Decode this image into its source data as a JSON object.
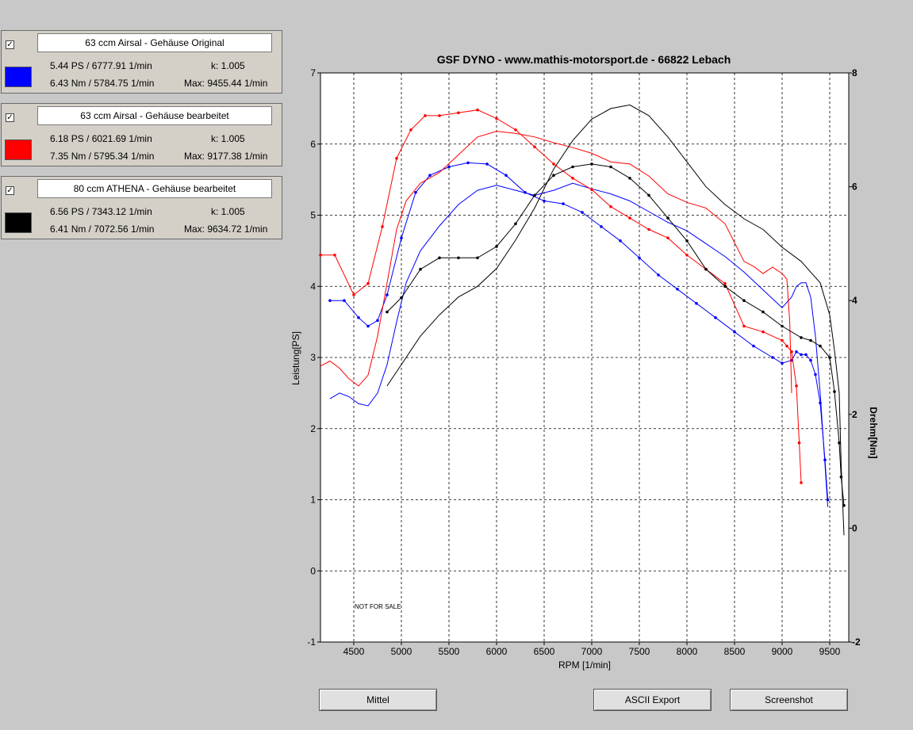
{
  "panels": [
    {
      "name": "63 ccm Airsal - Gehäuse Original",
      "checked": "✓",
      "ps": "5.44 PS / 6777.91 1/min",
      "k": "k: 1.005",
      "nm": "6.43 Nm / 5784.75 1/min",
      "max": "Max: 9455.44 1/min",
      "color": "#0000ff"
    },
    {
      "name": "63 ccm Airsal - Gehäuse bearbeitet",
      "checked": "✓",
      "ps": "6.18 PS / 6021.69 1/min",
      "k": "k: 1.005",
      "nm": "7.35 Nm / 5795.34 1/min",
      "max": "Max: 9177.38 1/min",
      "color": "#ff0000"
    },
    {
      "name": "80 ccm ATHENA - Gehäuse bearbeitet",
      "checked": "✓",
      "ps": "6.56 PS / 7343.12 1/min",
      "k": "k: 1.005",
      "nm": "6.41 Nm / 7072.56 1/min",
      "max": "Max: 9634.72 1/min",
      "color": "#000000"
    }
  ],
  "buttons": {
    "mittel": "Mittel",
    "ascii": "ASCII Export",
    "screenshot": "Screenshot"
  },
  "chart_data": {
    "type": "line",
    "title": "GSF DYNO - www.mathis-motorsport.de - 66822 Lebach",
    "xlabel": "RPM [1/min]",
    "ylabel": "Leistung[PS]",
    "y2label": "Drehm[Nm]",
    "watermark": "NOT FOR SALE",
    "xlim": [
      4150,
      9700
    ],
    "ylim": [
      -1,
      7
    ],
    "y2lim": [
      -2,
      8
    ],
    "xticks": [
      4500,
      5000,
      5500,
      6000,
      6500,
      7000,
      7500,
      8000,
      8500,
      9000,
      9500
    ],
    "yticks": [
      -1,
      0,
      1,
      2,
      3,
      4,
      5,
      6,
      7
    ],
    "y2ticks": [
      -2,
      0,
      2,
      4,
      6,
      8
    ],
    "grid": true,
    "series": [
      {
        "color": "#0000ff",
        "axis": "power",
        "x": [
          4250,
          4350,
          4450,
          4550,
          4650,
          4750,
          4850,
          4950,
          5050,
          5200,
          5400,
          5600,
          5800,
          6000,
          6200,
          6400,
          6600,
          6800,
          7000,
          7200,
          7400,
          7600,
          7800,
          8000,
          8200,
          8400,
          8600,
          8800,
          9000,
          9100,
          9150,
          9200,
          9250,
          9300,
          9350,
          9400,
          9450,
          9480
        ],
        "y": [
          2.42,
          2.5,
          2.45,
          2.35,
          2.32,
          2.5,
          2.9,
          3.5,
          4.05,
          4.5,
          4.85,
          5.15,
          5.35,
          5.42,
          5.35,
          5.28,
          5.35,
          5.45,
          5.37,
          5.3,
          5.2,
          5.05,
          4.9,
          4.78,
          4.6,
          4.42,
          4.2,
          3.95,
          3.7,
          3.85,
          4.0,
          4.05,
          4.05,
          3.85,
          3.3,
          2.5,
          1.5,
          0.9
        ]
      },
      {
        "color": "#0000ff",
        "axis": "torque",
        "x": [
          4250,
          4400,
          4550,
          4650,
          4750,
          4850,
          5000,
          5150,
          5300,
          5500,
          5700,
          5900,
          6100,
          6300,
          6500,
          6700,
          6900,
          7100,
          7300,
          7500,
          7700,
          7900,
          8100,
          8300,
          8500,
          8700,
          8900,
          9000,
          9100,
          9150,
          9200,
          9250,
          9300,
          9350,
          9400,
          9450,
          9480
        ],
        "y": [
          4.0,
          4.0,
          3.7,
          3.55,
          3.65,
          4.1,
          5.1,
          5.9,
          6.2,
          6.35,
          6.42,
          6.4,
          6.2,
          5.9,
          5.75,
          5.7,
          5.55,
          5.3,
          5.05,
          4.75,
          4.45,
          4.2,
          3.95,
          3.7,
          3.45,
          3.2,
          3.0,
          2.9,
          2.95,
          3.1,
          3.05,
          3.05,
          2.95,
          2.7,
          2.2,
          1.2,
          0.5
        ]
      },
      {
        "color": "#ff0000",
        "axis": "power",
        "x": [
          4150,
          4250,
          4350,
          4450,
          4550,
          4650,
          4750,
          4850,
          4950,
          5050,
          5200,
          5400,
          5600,
          5800,
          6000,
          6200,
          6400,
          6600,
          6800,
          7000,
          7200,
          7400,
          7600,
          7800,
          8000,
          8200,
          8400,
          8600,
          8700,
          8800,
          8900,
          9000,
          9050,
          9080,
          9100
        ],
        "y": [
          2.88,
          2.95,
          2.85,
          2.7,
          2.6,
          2.75,
          3.3,
          4.05,
          4.8,
          5.2,
          5.45,
          5.6,
          5.85,
          6.1,
          6.18,
          6.15,
          6.1,
          6.02,
          5.95,
          5.87,
          5.75,
          5.72,
          5.55,
          5.3,
          5.18,
          5.1,
          4.88,
          4.35,
          4.28,
          4.18,
          4.27,
          4.18,
          4.1,
          3.5,
          2.5
        ]
      },
      {
        "color": "#ff0000",
        "axis": "torque",
        "x": [
          4150,
          4300,
          4500,
          4650,
          4800,
          4950,
          5100,
          5250,
          5400,
          5600,
          5800,
          6000,
          6200,
          6400,
          6600,
          6800,
          7000,
          7200,
          7400,
          7600,
          7800,
          8000,
          8200,
          8400,
          8600,
          8800,
          9000,
          9050,
          9100,
          9150,
          9180,
          9200
        ],
        "y": [
          4.8,
          4.8,
          4.1,
          4.3,
          5.3,
          6.5,
          7.0,
          7.25,
          7.25,
          7.3,
          7.35,
          7.2,
          7.0,
          6.7,
          6.4,
          6.15,
          5.95,
          5.65,
          5.45,
          5.25,
          5.1,
          4.8,
          4.55,
          4.3,
          3.55,
          3.45,
          3.3,
          3.2,
          3.1,
          2.5,
          1.5,
          0.8
        ]
      },
      {
        "color": "#000000",
        "axis": "power",
        "x": [
          4850,
          5000,
          5200,
          5400,
          5600,
          5800,
          6000,
          6200,
          6400,
          6600,
          6800,
          7000,
          7200,
          7400,
          7600,
          7800,
          8000,
          8200,
          8400,
          8600,
          8800,
          9000,
          9200,
          9300,
          9400,
          9500,
          9550,
          9600,
          9620,
          9650
        ],
        "y": [
          2.6,
          2.9,
          3.3,
          3.6,
          3.85,
          4.0,
          4.25,
          4.65,
          5.1,
          5.65,
          6.05,
          6.35,
          6.5,
          6.55,
          6.4,
          6.1,
          5.75,
          5.4,
          5.15,
          4.95,
          4.8,
          4.55,
          4.35,
          4.2,
          4.05,
          3.6,
          3.1,
          2.5,
          1.5,
          0.5
        ]
      },
      {
        "color": "#000000",
        "axis": "torque",
        "x": [
          4850,
          5000,
          5200,
          5400,
          5600,
          5800,
          6000,
          6200,
          6400,
          6600,
          6800,
          7000,
          7200,
          7400,
          7600,
          7800,
          8000,
          8200,
          8400,
          8600,
          8800,
          9000,
          9200,
          9300,
          9400,
          9500,
          9550,
          9600,
          9620,
          9650
        ],
        "y": [
          3.8,
          4.05,
          4.55,
          4.75,
          4.75,
          4.75,
          4.95,
          5.35,
          5.85,
          6.2,
          6.35,
          6.4,
          6.35,
          6.15,
          5.85,
          5.45,
          5.05,
          4.55,
          4.25,
          4.0,
          3.8,
          3.55,
          3.35,
          3.3,
          3.2,
          3.0,
          2.4,
          1.5,
          0.9,
          0.4
        ]
      }
    ]
  }
}
